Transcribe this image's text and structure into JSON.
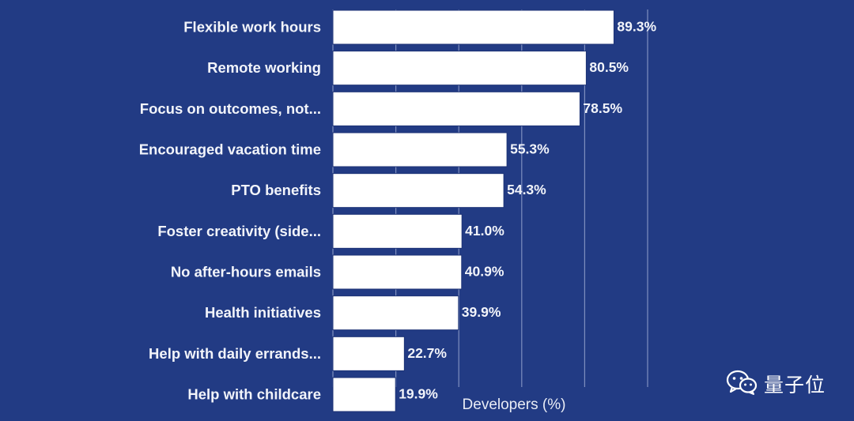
{
  "colors": {
    "background": "#223b84",
    "bar_fill": "#ffffff",
    "text": "#f2f4fa",
    "gridline": "#7f8fbf"
  },
  "chart_data": {
    "type": "bar",
    "orientation": "horizontal",
    "title": "",
    "categories": [
      "Flexible work hours",
      "Remote working",
      "Focus on outcomes, not...",
      "Encouraged vacation time",
      "PTO benefits",
      "Foster creativity (side...",
      "No after-hours emails",
      "Health initiatives",
      "Help with daily errands...",
      "Help with childcare"
    ],
    "values": [
      89.3,
      80.5,
      78.5,
      55.3,
      54.3,
      41.0,
      40.9,
      39.9,
      22.7,
      19.9
    ],
    "value_labels": [
      "89.3%",
      "80.5%",
      "78.5%",
      "55.3%",
      "54.3%",
      "41.0%",
      "40.9%",
      "39.9%",
      "22.7%",
      "19.9%"
    ],
    "xlabel": "Developers (%)",
    "ylabel": "",
    "xlim": [
      0,
      100
    ],
    "gridlines_at": [
      0,
      20,
      40,
      60,
      80,
      100
    ],
    "grid": true,
    "legend": "none"
  },
  "watermark": {
    "icon": "wechat-icon",
    "text": "量子位"
  }
}
